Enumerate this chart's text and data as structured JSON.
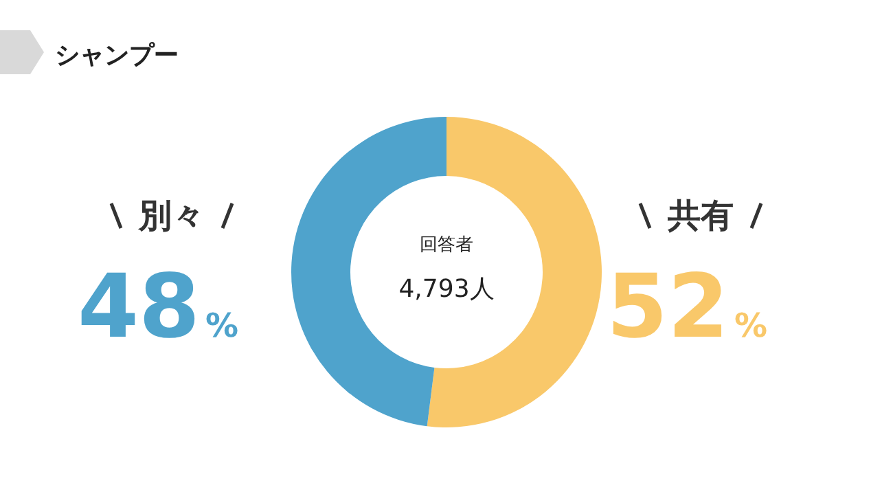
{
  "chart_data": {
    "type": "donut",
    "title": "シャンプー",
    "categories": [
      "別々",
      "共有"
    ],
    "values": [
      48,
      52
    ],
    "colors": [
      "#4fa3cc",
      "#f9c86a"
    ],
    "value_labels": [
      "48%",
      "52%"
    ],
    "annotations": [
      "回答者",
      "4,793人"
    ]
  }
}
